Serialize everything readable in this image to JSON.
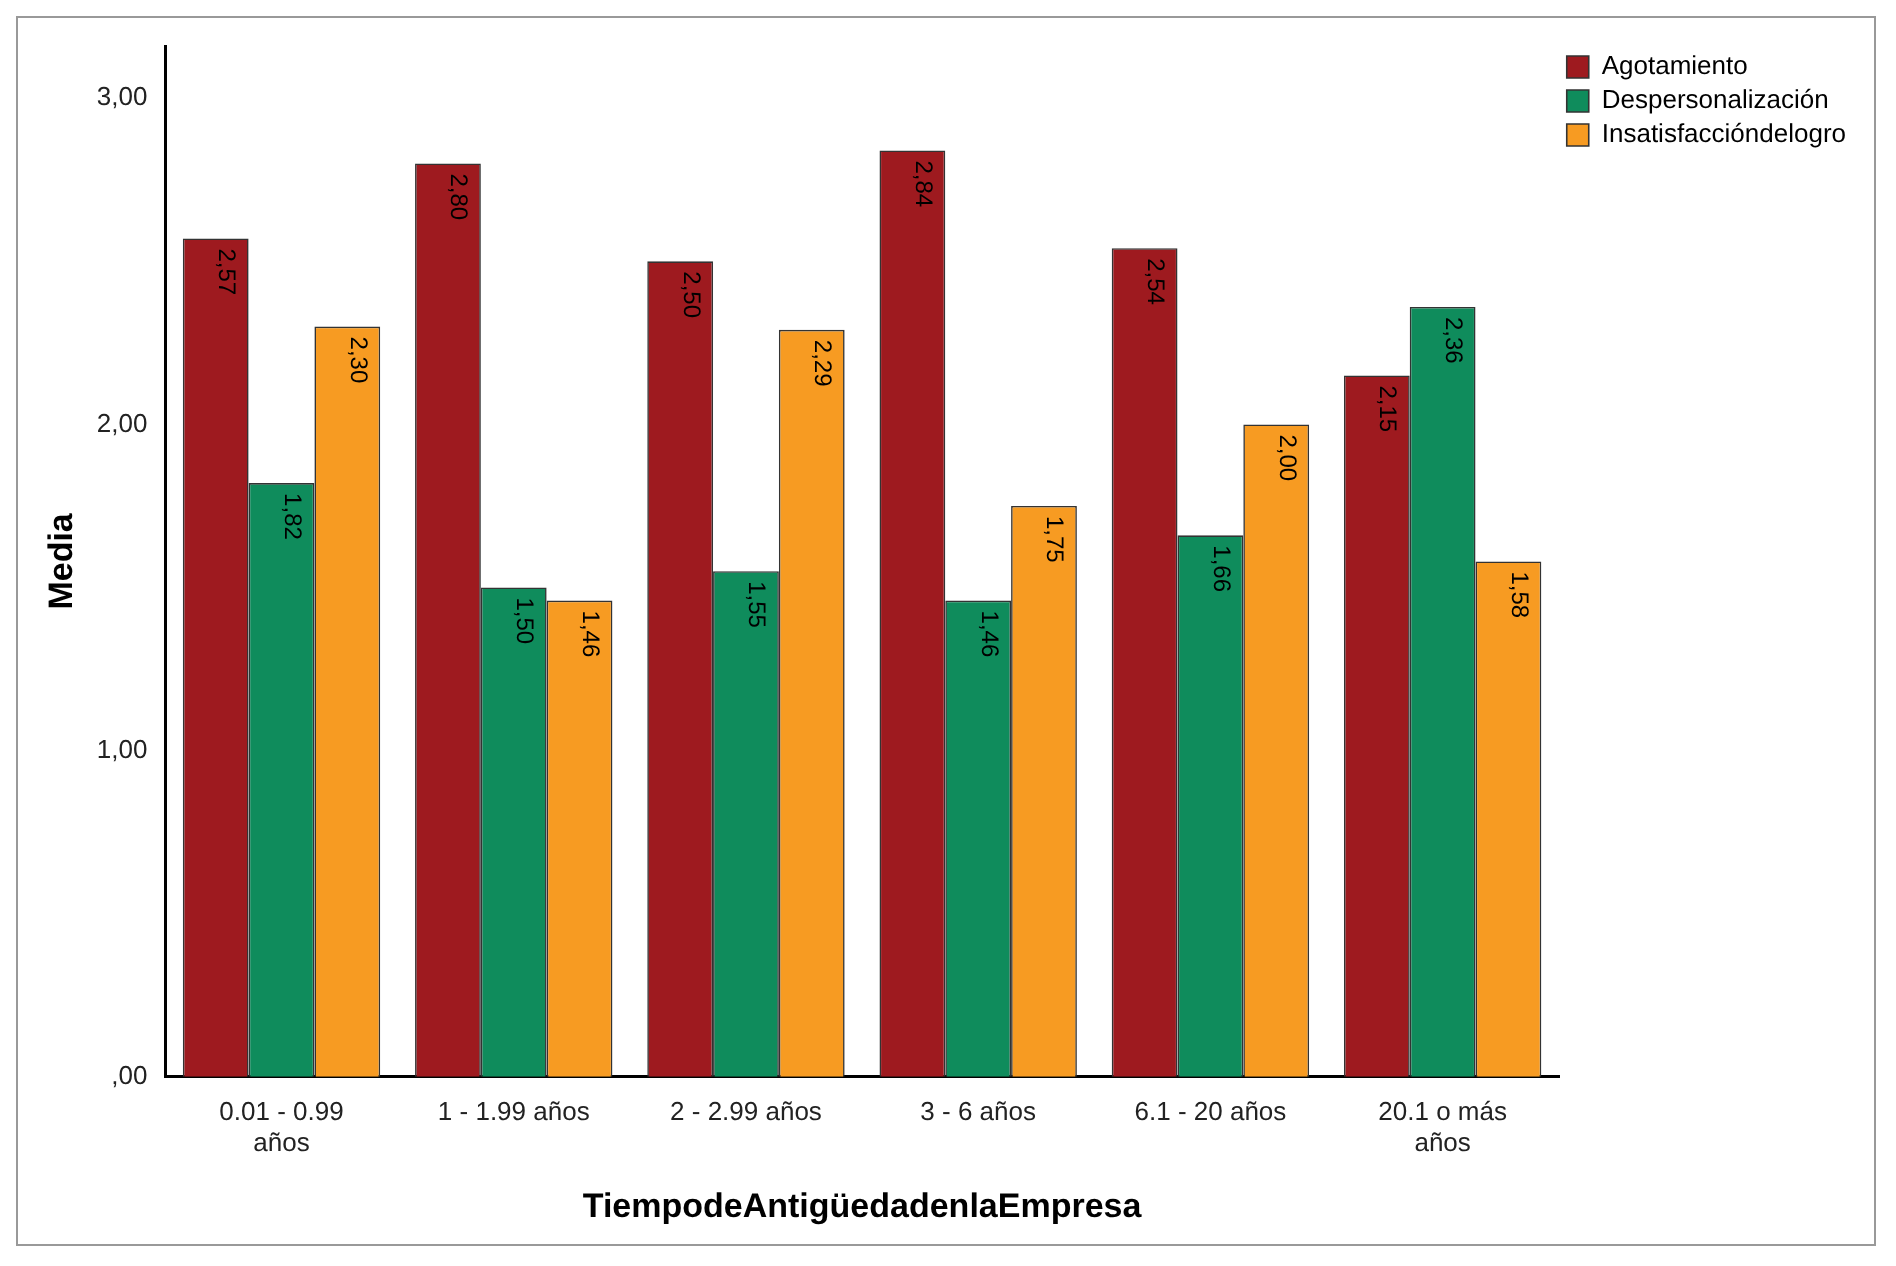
{
  "chart_data": {
    "type": "bar",
    "xlabel": "TiempodeAntigüedadenlaEmpresa",
    "ylabel": "Media",
    "categories": [
      "0.01 - 0.99 años",
      "1 - 1.99 años",
      "2 - 2.99 años",
      "3 - 6 años",
      "6.1 - 20 años",
      "20.1 o más años"
    ],
    "series": [
      {
        "name": "Agotamiento",
        "color": "#9e1a1f",
        "values": [
          2.57,
          2.8,
          2.5,
          2.84,
          2.54,
          2.15
        ],
        "value_labels": [
          "2,57",
          "2,80",
          "2,50",
          "2,84",
          "2,54",
          "2,15"
        ]
      },
      {
        "name": "Despersonalización",
        "color": "#0f8c5c",
        "values": [
          1.82,
          1.5,
          1.55,
          1.46,
          1.66,
          2.36
        ],
        "value_labels": [
          "1,82",
          "1,50",
          "1,55",
          "1,46",
          "1,66",
          "2,36"
        ]
      },
      {
        "name": "Insatisfaccióndelogro",
        "color": "#f79b22",
        "values": [
          2.3,
          1.46,
          2.29,
          1.75,
          2.0,
          1.58
        ],
        "value_labels": [
          "2,30",
          "1,46",
          "2,29",
          "1,75",
          "2,00",
          "1,58"
        ]
      }
    ],
    "ylim": [
      0,
      3.16
    ],
    "yticks": [
      {
        "value": 0,
        "label": ",00"
      },
      {
        "value": 1,
        "label": "1,00"
      },
      {
        "value": 2,
        "label": "2,00"
      },
      {
        "value": 3,
        "label": "3,00"
      }
    ],
    "grid": false,
    "legend": "top right"
  }
}
